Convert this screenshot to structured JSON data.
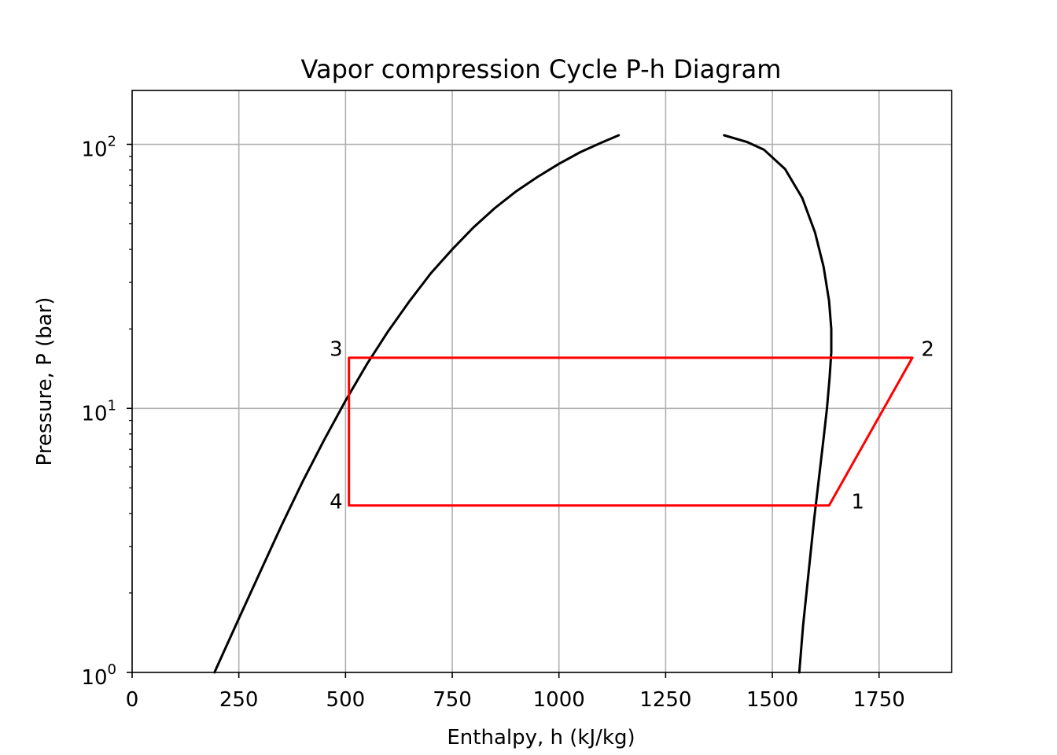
{
  "chart_data": {
    "type": "line",
    "title": "Vapor compression Cycle P-h Diagram",
    "xlabel": "Enthalpy, h (kJ/kg)",
    "ylabel": "Pressure, P (bar)",
    "xlim": [
      0,
      1920
    ],
    "ylim": [
      1,
      160
    ],
    "yscale": "log",
    "grid": true,
    "x_ticks": [
      {
        "value": 0,
        "label": "0"
      },
      {
        "value": 250,
        "label": "250"
      },
      {
        "value": 500,
        "label": "500"
      },
      {
        "value": 750,
        "label": "750"
      },
      {
        "value": 1000,
        "label": "1000"
      },
      {
        "value": 1250,
        "label": "1250"
      },
      {
        "value": 1500,
        "label": "1500"
      },
      {
        "value": 1750,
        "label": "1750"
      }
    ],
    "y_ticks": [
      {
        "value": 1,
        "base": "10",
        "exp": "0"
      },
      {
        "value": 10,
        "base": "10",
        "exp": "1"
      },
      {
        "value": 100,
        "base": "10",
        "exp": "2"
      }
    ],
    "series": [
      {
        "role": "saturated-liquid-line",
        "color": "#000000",
        "x": [
          193,
          250,
          300,
          350,
          400,
          450,
          500,
          550,
          600,
          650,
          700,
          750,
          800,
          850,
          900,
          950,
          1000,
          1050,
          1100,
          1140
        ],
        "y": [
          1.0,
          1.6,
          2.4,
          3.6,
          5.3,
          7.6,
          10.7,
          14.7,
          19.6,
          25.5,
          32.5,
          40.0,
          48.5,
          57.4,
          66.4,
          75.3,
          84.4,
          93.4,
          101.6,
          108.2
        ]
      },
      {
        "role": "saturated-vapor-line",
        "color": "#000000",
        "x": [
          1387,
          1440,
          1480,
          1530,
          1570,
          1600,
          1620,
          1633,
          1638,
          1638,
          1634,
          1628,
          1620,
          1610,
          1598,
          1585,
          1572,
          1563
        ],
        "y": [
          108.2,
          102.2,
          95.5,
          80.6,
          62.6,
          46.4,
          34.4,
          25.5,
          20.0,
          16.3,
          13.0,
          10.0,
          7.7,
          5.6,
          3.8,
          2.4,
          1.5,
          1.0
        ]
      },
      {
        "role": "cycle",
        "color": "#ff0000",
        "x": [
          1633,
          1828,
          508,
          508,
          1633
        ],
        "y": [
          4.29,
          15.55,
          15.55,
          4.29,
          4.29
        ]
      }
    ],
    "annotations": [
      {
        "text": "1",
        "x": 1700,
        "y": 4.45
      },
      {
        "text": "2",
        "x": 1864,
        "y": 16.8
      },
      {
        "text": "3",
        "x": 478,
        "y": 16.8
      },
      {
        "text": "4",
        "x": 478,
        "y": 4.45
      }
    ]
  }
}
